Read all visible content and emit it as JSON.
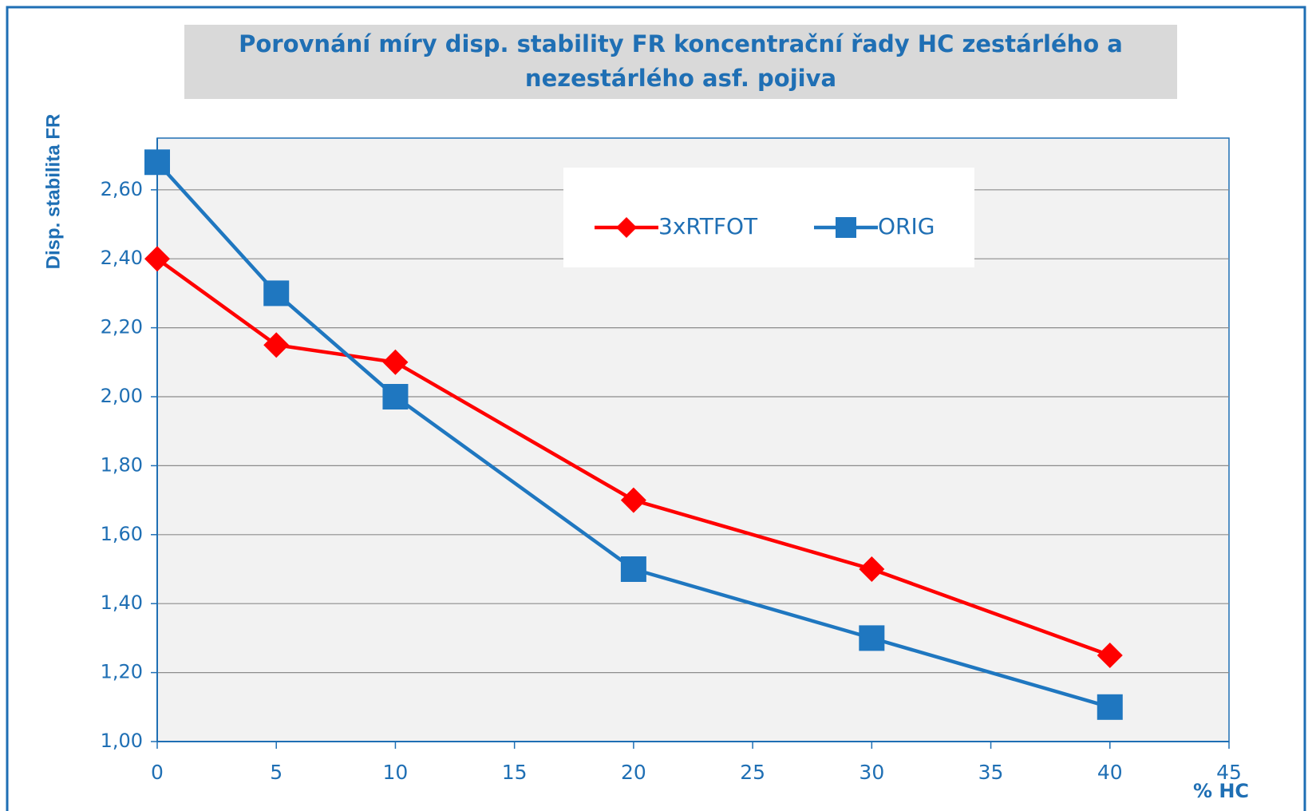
{
  "chart_data": {
    "type": "line",
    "title": "Porovnání míry disp. stability FR koncentrační řady HC zestárlého a nezestárlého asf. pojiva",
    "title_lines": [
      "Porovnání míry disp. stability FR koncentrační řady HC zestárlého a",
      "nezestárlého asf. pojiva"
    ],
    "x_label": "% HC",
    "y_label": "Disp. stabilita FR",
    "x": [
      0,
      5,
      10,
      20,
      30,
      40
    ],
    "series": [
      {
        "name": "3xRTFOT",
        "color": "#ff0000",
        "marker": "diamond",
        "values": [
          2.4,
          2.15,
          2.1,
          1.7,
          1.5,
          1.25
        ]
      },
      {
        "name": "ORIG",
        "color": "#1f77c0",
        "marker": "square",
        "values": [
          2.68,
          2.3,
          2.0,
          1.5,
          1.3,
          1.1
        ]
      }
    ],
    "xlim": [
      0,
      45
    ],
    "xticks": [
      0,
      5,
      10,
      15,
      20,
      25,
      30,
      35,
      40,
      45
    ],
    "ylim": [
      1.0,
      2.75
    ],
    "yticks": [
      {
        "value": 1.0,
        "label": "1,00"
      },
      {
        "value": 1.2,
        "label": "1,20"
      },
      {
        "value": 1.4,
        "label": "1,40"
      },
      {
        "value": 1.6,
        "label": "1,60"
      },
      {
        "value": 1.8,
        "label": "1,80"
      },
      {
        "value": 2.0,
        "label": "2,00"
      },
      {
        "value": 2.2,
        "label": "2,20"
      },
      {
        "value": 2.4,
        "label": "2,40"
      },
      {
        "value": 2.6,
        "label": "2,60"
      }
    ],
    "grid": true,
    "legend": "top"
  }
}
